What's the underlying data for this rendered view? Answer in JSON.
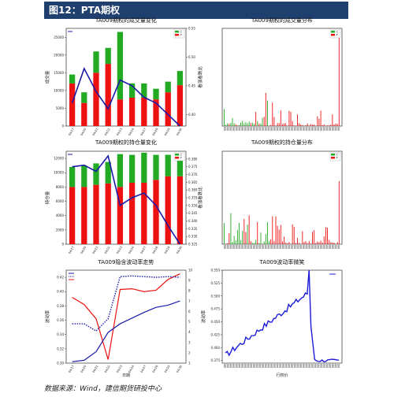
{
  "header": {
    "title": "图12：PTA期权"
  },
  "footer": {
    "source": "数据来源：Wind，建信期货研投中心"
  },
  "colors": {
    "call": "#22aa22",
    "put": "#ee1111",
    "line": "#1a1aa8",
    "header_bg": "#1f3f6e"
  },
  "chart_data": [
    {
      "id": "volume-change",
      "type": "bar",
      "title": "TA009期权的成交量变化",
      "ylabel": "成交量",
      "y2label": "看涨看跌比",
      "legend": [
        "C",
        "P"
      ],
      "categories": [
        "04/17",
        "04/20",
        "04/21",
        "04/22",
        "04/23",
        "04/24",
        "04/27",
        "04/28",
        "04/29",
        "04/30"
      ],
      "put_values": [
        12000,
        6500,
        15000,
        17500,
        7500,
        8000,
        8000,
        7500,
        9500,
        11500
      ],
      "call_values": [
        2500,
        3000,
        6000,
        4500,
        19000,
        4000,
        4000,
        3000,
        3000,
        4000
      ],
      "line_values": [
        0.42,
        0.48,
        0.44,
        0.41,
        0.46,
        0.45,
        0.43,
        0.42,
        0.4,
        0.38
      ],
      "ylim": [
        0,
        27500
      ],
      "y2lim": [
        0.38,
        0.55
      ],
      "yticks": [
        0,
        5000,
        10000,
        15000,
        20000,
        25000
      ],
      "y2ticks": [
        0.4,
        0.45,
        0.5,
        0.55
      ]
    },
    {
      "id": "volume-distribution",
      "type": "bar",
      "title": "TA009期权的成交量分布",
      "legend": [
        "C",
        "P"
      ]
    },
    {
      "id": "oi-change",
      "type": "bar",
      "title": "TA009期权的持仓量变化",
      "ylabel": "持仓量",
      "y2label": "看涨看跌比",
      "legend": [
        "C",
        "P"
      ],
      "categories": [
        "04/17",
        "04/20",
        "04/21",
        "04/22",
        "04/23",
        "04/24",
        "04/27",
        "04/28",
        "04/29",
        "04/30"
      ],
      "put_values": [
        8000,
        8000,
        8300,
        8500,
        8000,
        8600,
        8600,
        9000,
        9500,
        9500
      ],
      "call_values": [
        2800,
        3000,
        3000,
        3000,
        4600,
        3900,
        4200,
        3500,
        3000,
        3000
      ],
      "line_values": [
        0.375,
        0.376,
        0.372,
        0.382,
        0.35,
        0.355,
        0.358,
        0.35,
        0.337,
        0.325
      ],
      "ylim": [
        0,
        13000
      ],
      "y2lim": [
        0.325,
        0.385
      ],
      "yticks": [
        0,
        2000,
        4000,
        6000,
        8000,
        10000,
        12000
      ],
      "y2ticks": [
        0.325,
        0.33,
        0.335,
        0.34,
        0.345,
        0.35,
        0.355,
        0.36,
        0.365,
        0.37,
        0.375,
        0.38
      ]
    },
    {
      "id": "oi-distribution",
      "type": "bar",
      "title": "TA009期权的持仓量分布",
      "legend": [
        "C",
        "P"
      ]
    },
    {
      "id": "vol-trend",
      "type": "line",
      "title": "TA009隐含波动率走势",
      "ylabel": "波动率",
      "xlabel": "日期",
      "categories": [
        "04/17",
        "04/20",
        "04/21",
        "04/22",
        "04/23",
        "04/24",
        "04/27",
        "04/28",
        "04/29",
        "04/30"
      ],
      "ylim": [
        0.3,
        0.43
      ],
      "yticks": [
        0.3,
        0.32,
        0.34,
        0.36,
        0.38,
        0.4,
        0.42
      ],
      "y2ticks": [
        1,
        2,
        3,
        4,
        5,
        6,
        7,
        8,
        9,
        10
      ]
    },
    {
      "id": "vol-smile",
      "type": "line",
      "title": "TA009波动率微笑",
      "xlabel": "行权价",
      "ylabel": "波动率",
      "ylim": [
        0.37,
        0.55
      ],
      "yticks": [
        0.375,
        0.4,
        0.425,
        0.45,
        0.475,
        0.5,
        0.525,
        0.55
      ]
    }
  ]
}
